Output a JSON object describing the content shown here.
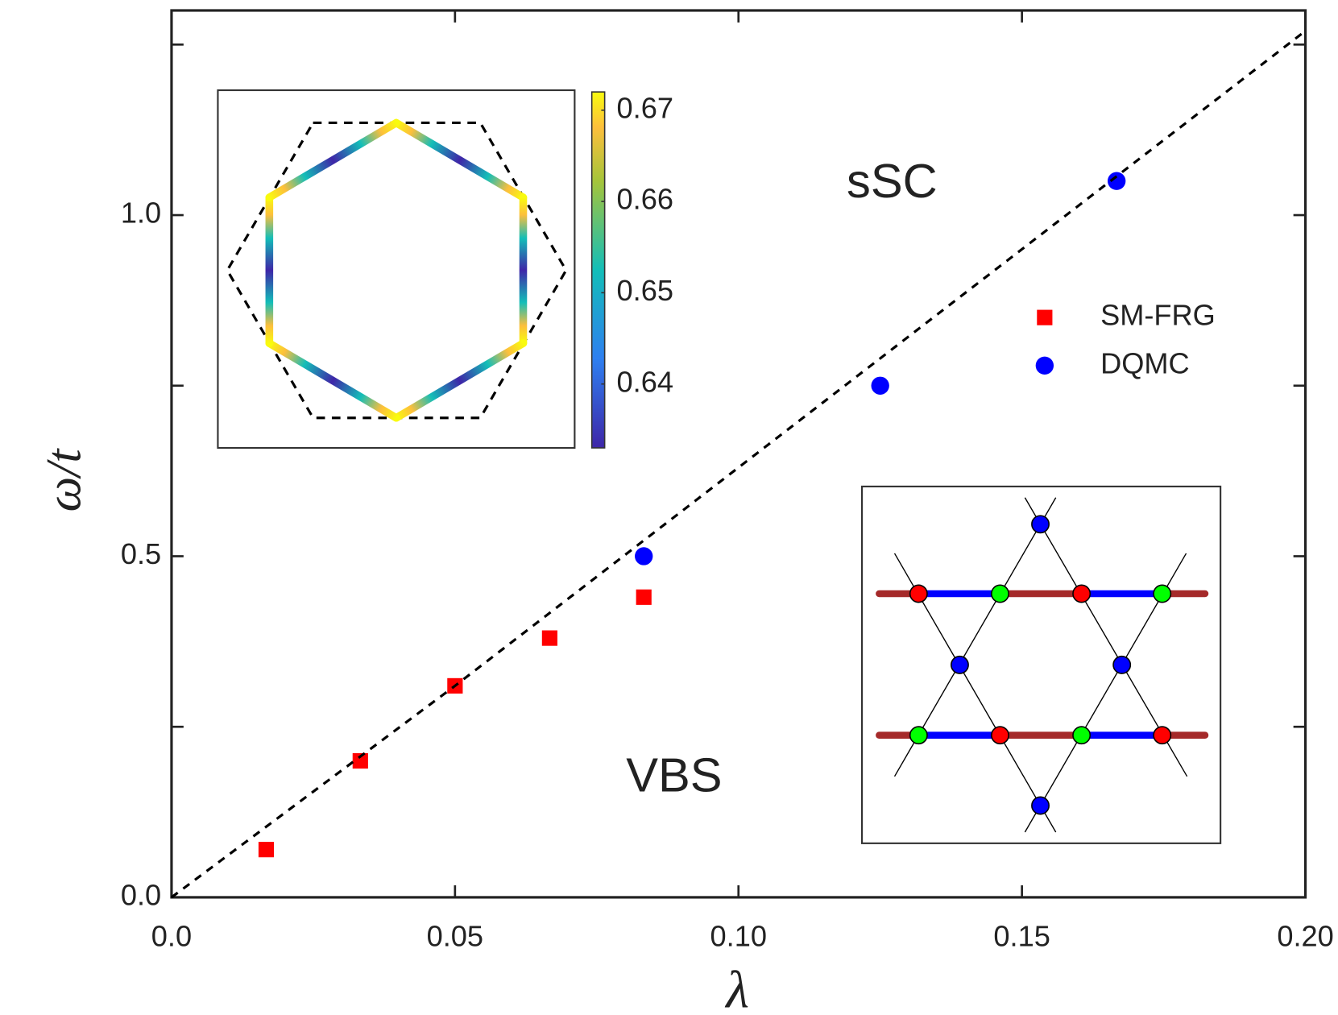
{
  "chart_data": {
    "type": "scatter",
    "xlabel": "λ",
    "ylabel": "ω/t",
    "xlim": [
      0,
      0.2
    ],
    "ylim": [
      0,
      1.3
    ],
    "xticks": [
      {
        "value": 0,
        "label": "0.0"
      },
      0.05,
      {
        "value": 0.1,
        "label": "0.10"
      },
      0.15,
      {
        "value": 0.2,
        "label": "0.20"
      }
    ],
    "yticks": [
      {
        "value": 0,
        "label": "0.0"
      },
      0.5,
      {
        "value": 1,
        "label": "1.0"
      }
    ],
    "yminor_ticks": [
      0.25,
      0.75,
      1.25
    ],
    "legend": "right",
    "annotations": [
      "sSC",
      "VBS"
    ],
    "series": [
      {
        "name": "SM-FRG",
        "color": "#ff0000",
        "marker": "square",
        "x": [
          0.0167,
          0.0333,
          0.05,
          0.0667,
          0.0833
        ],
        "values": [
          0.07,
          0.2,
          0.31,
          0.38,
          0.44
        ]
      },
      {
        "name": "DQMC",
        "color": "#0000ff",
        "marker": "circle",
        "x": [
          0.0833,
          0.125,
          0.1667
        ],
        "values": [
          0.5,
          0.75,
          1.05
        ]
      },
      {
        "color": "#000000",
        "style": "dashed",
        "x": [
          0,
          0.05,
          0.1,
          0.15,
          0.2
        ],
        "values": [
          0,
          0.31,
          0.63,
          0.95,
          1.27
        ]
      }
    ],
    "colorbar_lim": [
      0.633,
      0.672
    ],
    "colorbar_ticks": [
      0.64,
      0.65,
      0.66,
      0.67
    ]
  }
}
